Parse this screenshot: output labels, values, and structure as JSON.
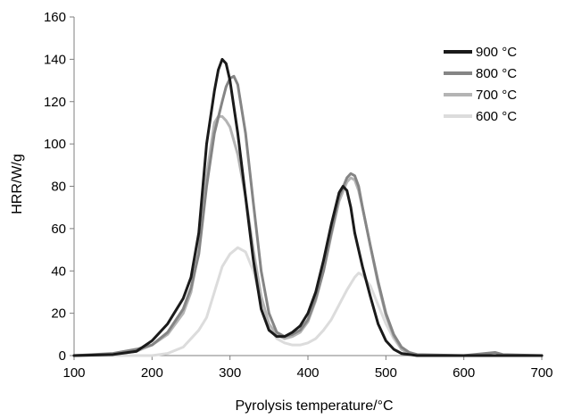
{
  "chart_data": {
    "type": "line",
    "xlabel": "Pyrolysis temperature/°C",
    "ylabel": "HRR/W/g",
    "xlim": [
      100,
      700
    ],
    "ylim": [
      0,
      160
    ],
    "xticks": [
      100,
      200,
      300,
      400,
      500,
      600,
      700
    ],
    "yticks": [
      0,
      20,
      40,
      60,
      80,
      100,
      120,
      140,
      160
    ],
    "xtick_labels": [
      "100",
      "200",
      "300",
      "400",
      "500",
      "600",
      "700"
    ],
    "ytick_labels": [
      "0",
      "20",
      "40",
      "60",
      "80",
      "100",
      "120",
      "140",
      "160"
    ],
    "grid": false,
    "legend_position": "top-right",
    "series": [
      {
        "name": "900 °C",
        "color": "#1a1a1a",
        "x": [
          100,
          150,
          180,
          200,
          220,
          240,
          250,
          260,
          270,
          280,
          285,
          290,
          295,
          300,
          310,
          320,
          330,
          340,
          350,
          360,
          370,
          380,
          390,
          400,
          410,
          420,
          430,
          440,
          445,
          450,
          455,
          460,
          470,
          480,
          490,
          500,
          510,
          520,
          530,
          540,
          600,
          700
        ],
        "y": [
          0,
          0.5,
          2,
          7,
          15,
          27,
          37,
          58,
          100,
          125,
          135,
          140,
          138,
          130,
          105,
          75,
          45,
          22,
          12,
          9,
          9,
          11,
          14,
          20,
          30,
          45,
          62,
          77,
          80,
          78,
          70,
          58,
          42,
          28,
          15,
          7,
          3,
          1,
          0.5,
          0,
          0,
          0
        ]
      },
      {
        "name": "800 °C",
        "color": "#858585",
        "x": [
          100,
          150,
          180,
          200,
          220,
          240,
          250,
          260,
          270,
          280,
          290,
          295,
          300,
          305,
          310,
          320,
          330,
          340,
          350,
          360,
          370,
          380,
          390,
          400,
          410,
          420,
          430,
          440,
          450,
          455,
          460,
          465,
          470,
          480,
          490,
          500,
          510,
          520,
          530,
          540,
          600,
          640,
          650,
          700
        ],
        "y": [
          0,
          1,
          3,
          5,
          11,
          22,
          32,
          48,
          80,
          105,
          120,
          127,
          131,
          132,
          128,
          105,
          72,
          40,
          20,
          11,
          9,
          10,
          12,
          17,
          27,
          40,
          58,
          75,
          84,
          86,
          85,
          80,
          70,
          52,
          35,
          20,
          10,
          4,
          1.5,
          0.5,
          0,
          1.5,
          0.5,
          0
        ]
      },
      {
        "name": "700 °C",
        "color": "#b4b4b4",
        "x": [
          100,
          150,
          180,
          200,
          220,
          240,
          250,
          260,
          270,
          280,
          285,
          290,
          295,
          300,
          310,
          320,
          330,
          340,
          350,
          360,
          370,
          380,
          390,
          400,
          410,
          420,
          430,
          440,
          450,
          455,
          460,
          465,
          470,
          480,
          490,
          500,
          510,
          520,
          530,
          540,
          600,
          700
        ],
        "y": [
          0,
          0.5,
          2,
          5,
          10,
          20,
          30,
          50,
          85,
          110,
          113,
          113,
          111,
          108,
          95,
          75,
          50,
          28,
          15,
          10,
          8,
          9,
          11,
          16,
          26,
          40,
          57,
          73,
          82,
          84,
          83,
          78,
          70,
          52,
          34,
          19,
          9,
          3,
          1,
          0,
          0,
          0
        ]
      },
      {
        "name": "600 °C",
        "color": "#dcdcdc",
        "x": [
          100,
          200,
          220,
          240,
          250,
          260,
          270,
          280,
          290,
          300,
          310,
          320,
          330,
          340,
          350,
          360,
          370,
          380,
          390,
          400,
          410,
          420,
          430,
          440,
          450,
          460,
          465,
          470,
          480,
          490,
          500,
          510,
          520,
          530,
          540,
          550,
          600,
          700
        ],
        "y": [
          0,
          0,
          1,
          4,
          8,
          12,
          18,
          30,
          42,
          48,
          51,
          49,
          40,
          25,
          14,
          8,
          6,
          5,
          5,
          6,
          8,
          12,
          17,
          24,
          31,
          37,
          39,
          38,
          33,
          24,
          15,
          8,
          3,
          1,
          0.5,
          0,
          0,
          0
        ]
      }
    ]
  }
}
